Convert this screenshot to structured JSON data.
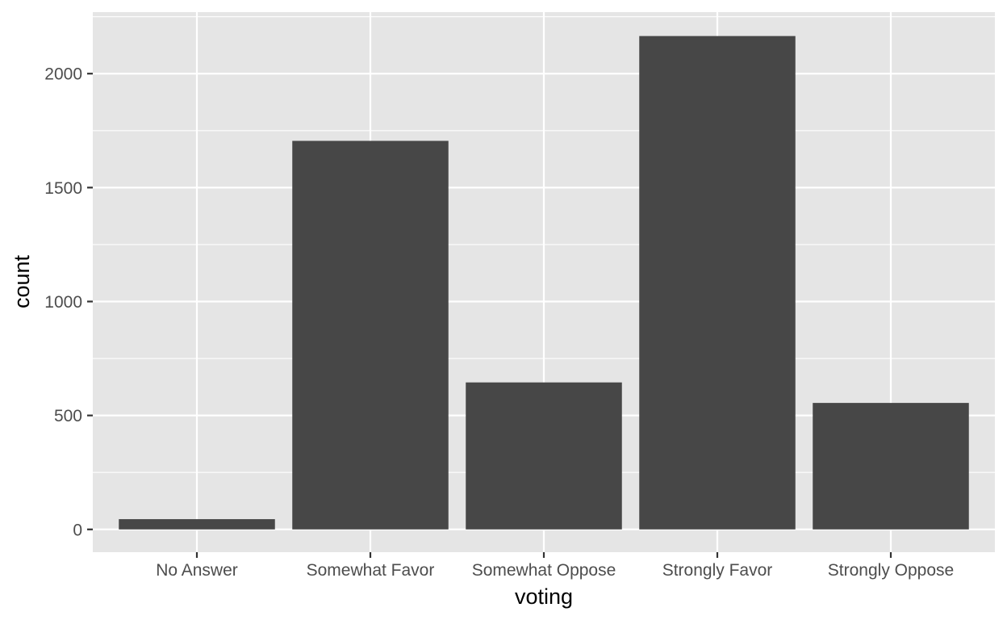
{
  "chart_data": {
    "type": "bar",
    "title": "",
    "xlabel": "voting",
    "ylabel": "count",
    "categories": [
      "No Answer",
      "Somewhat Favor",
      "Somewhat Oppose",
      "Strongly Favor",
      "Strongly Oppose"
    ],
    "values": [
      45,
      1705,
      645,
      2165,
      555
    ],
    "ylim": [
      -100,
      2270
    ],
    "yticks": [
      0,
      500,
      1000,
      1500,
      2000
    ],
    "ytick_labels": [
      "0",
      "500",
      "1000",
      "1500",
      "2000"
    ],
    "grid": true,
    "legend": "none",
    "colors": {
      "panel": "#e5e5e5",
      "grid": "#ffffff",
      "bar": "#474747",
      "tick": "#333333",
      "tick_text": "#4d4d4d"
    }
  }
}
